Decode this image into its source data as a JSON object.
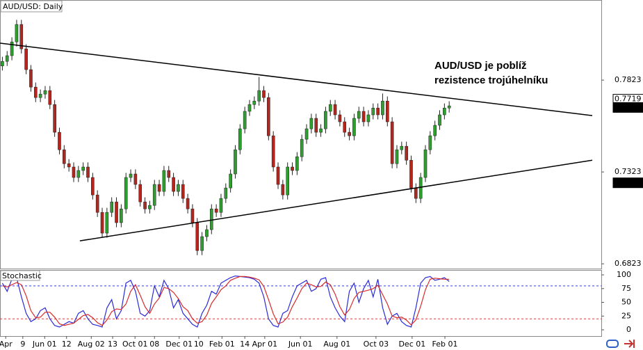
{
  "chart_data": [
    {
      "type": "candlestick",
      "title": "AUD/USD: Daily",
      "annotation": [
        "AUD/USD je poblíž",
        "rezistence trojúhelníku"
      ],
      "up_color": "#2e9e2e",
      "down_color": "#b3261e",
      "xlim": [
        -0.5,
        126
      ],
      "ylim": [
        0.6797,
        0.8259
      ],
      "yticks": [
        0.6823,
        0.7323,
        0.7823
      ],
      "open": [
        0.79,
        0.7925,
        0.7956,
        0.8031,
        0.8126,
        0.7993,
        0.788,
        0.7785,
        0.7728,
        0.7747,
        0.7766,
        0.769,
        0.7539,
        0.7444,
        0.7368,
        0.735,
        0.7293,
        0.7331,
        0.735,
        0.7293,
        0.7198,
        0.7103,
        0.699,
        0.7103,
        0.716,
        0.7047,
        0.7122,
        0.7293,
        0.7312,
        0.7255,
        0.716,
        0.7122,
        0.7141,
        0.7255,
        0.7217,
        0.7331,
        0.7293,
        0.7217,
        0.7255,
        0.7179,
        0.7122,
        0.7047,
        0.6895,
        0.6971,
        0.7009,
        0.7122,
        0.7103,
        0.7179,
        0.7236,
        0.7312,
        0.7444,
        0.7558,
        0.7653,
        0.769,
        0.7709,
        0.7766,
        0.7728,
        0.752,
        0.735,
        0.7255,
        0.7198,
        0.735,
        0.7331,
        0.7406,
        0.7501,
        0.7558,
        0.7615,
        0.7539,
        0.7558,
        0.7653,
        0.769,
        0.7634,
        0.7596,
        0.7539,
        0.752,
        0.7615,
        0.7653,
        0.7596,
        0.7634,
        0.7671,
        0.7634,
        0.7709,
        0.7596,
        0.7368,
        0.7444,
        0.7463,
        0.7387,
        0.7236,
        0.7179,
        0.7293,
        0.7444,
        0.752,
        0.7577,
        0.7634,
        0.7671
      ],
      "high": [
        0.795,
        0.7981,
        0.8056,
        0.8151,
        0.8151,
        0.8018,
        0.7905,
        0.781,
        0.7772,
        0.7791,
        0.7791,
        0.7715,
        0.7564,
        0.7469,
        0.7393,
        0.7375,
        0.7356,
        0.7375,
        0.7375,
        0.7318,
        0.7223,
        0.7128,
        0.7128,
        0.7185,
        0.7185,
        0.7147,
        0.7318,
        0.7337,
        0.7337,
        0.728,
        0.7185,
        0.7166,
        0.728,
        0.728,
        0.7356,
        0.7356,
        0.7318,
        0.728,
        0.728,
        0.7204,
        0.7147,
        0.7072,
        0.6996,
        0.7034,
        0.7147,
        0.7147,
        0.7204,
        0.7261,
        0.7337,
        0.7469,
        0.7583,
        0.7678,
        0.7715,
        0.7734,
        0.784,
        0.7791,
        0.7753,
        0.7545,
        0.7375,
        0.728,
        0.7375,
        0.7375,
        0.7431,
        0.7526,
        0.7583,
        0.764,
        0.764,
        0.7583,
        0.7678,
        0.7715,
        0.7715,
        0.7659,
        0.7621,
        0.7564,
        0.764,
        0.7678,
        0.7678,
        0.7659,
        0.7696,
        0.7696,
        0.775,
        0.7734,
        0.7621,
        0.7469,
        0.7488,
        0.7488,
        0.7412,
        0.7261,
        0.7318,
        0.7469,
        0.7545,
        0.7602,
        0.7659,
        0.7696,
        0.7708
      ],
      "low": [
        0.7875,
        0.79,
        0.7931,
        0.8006,
        0.7968,
        0.7855,
        0.776,
        0.7703,
        0.7703,
        0.7722,
        0.7665,
        0.7514,
        0.7419,
        0.7343,
        0.7325,
        0.7268,
        0.7268,
        0.7306,
        0.7268,
        0.7173,
        0.7078,
        0.6965,
        0.6965,
        0.7078,
        0.7022,
        0.7022,
        0.7097,
        0.7268,
        0.723,
        0.7135,
        0.7097,
        0.7097,
        0.7116,
        0.7192,
        0.7192,
        0.7268,
        0.7192,
        0.7192,
        0.7154,
        0.7097,
        0.7022,
        0.687,
        0.687,
        0.6946,
        0.6984,
        0.7078,
        0.7078,
        0.7154,
        0.7211,
        0.7287,
        0.7419,
        0.7533,
        0.7628,
        0.7665,
        0.7684,
        0.7703,
        0.7495,
        0.7325,
        0.723,
        0.7173,
        0.7173,
        0.7306,
        0.7306,
        0.7381,
        0.7476,
        0.7533,
        0.7514,
        0.7514,
        0.7533,
        0.7628,
        0.7609,
        0.7571,
        0.7514,
        0.7495,
        0.7495,
        0.759,
        0.7571,
        0.7571,
        0.7609,
        0.7609,
        0.7609,
        0.7571,
        0.7343,
        0.7343,
        0.7419,
        0.7362,
        0.7211,
        0.7154,
        0.7154,
        0.7268,
        0.7419,
        0.7495,
        0.7552,
        0.7609,
        0.7646
      ],
      "close": [
        0.7925,
        0.7956,
        0.8031,
        0.8126,
        0.7993,
        0.788,
        0.7785,
        0.7728,
        0.7747,
        0.7766,
        0.769,
        0.7539,
        0.7444,
        0.7368,
        0.735,
        0.7293,
        0.7331,
        0.735,
        0.7293,
        0.7198,
        0.7103,
        0.699,
        0.7103,
        0.716,
        0.7047,
        0.7122,
        0.7293,
        0.7312,
        0.7255,
        0.716,
        0.7122,
        0.7141,
        0.7255,
        0.7217,
        0.7331,
        0.7293,
        0.7217,
        0.7255,
        0.7179,
        0.7122,
        0.7047,
        0.6895,
        0.6971,
        0.7009,
        0.7122,
        0.7103,
        0.7179,
        0.7236,
        0.7312,
        0.7444,
        0.7558,
        0.7653,
        0.769,
        0.7709,
        0.7766,
        0.7728,
        0.752,
        0.735,
        0.7255,
        0.7198,
        0.735,
        0.7331,
        0.7406,
        0.7501,
        0.7558,
        0.7615,
        0.7539,
        0.7558,
        0.7653,
        0.769,
        0.7634,
        0.7596,
        0.7539,
        0.752,
        0.7615,
        0.7653,
        0.7596,
        0.7634,
        0.7671,
        0.7634,
        0.7709,
        0.7596,
        0.7368,
        0.7444,
        0.7463,
        0.7387,
        0.7236,
        0.7179,
        0.7293,
        0.7444,
        0.752,
        0.7577,
        0.7634,
        0.7671,
        0.7683
      ],
      "trendlines": [
        {
          "x": [
            -0.5,
            124.1
          ],
          "y": [
            0.8024,
            0.763
          ]
        },
        {
          "x": [
            16.3,
            124.1
          ],
          "y": [
            0.6948,
            0.7387
          ]
        }
      ],
      "price_labels": [
        {
          "value": 0.7719,
          "style": "outline"
        },
        {
          "value": 0.7674,
          "style": "filled"
        },
        {
          "value": 0.7264,
          "style": "filled"
        }
      ]
    },
    {
      "type": "line",
      "title": "Stochastic",
      "xlim": [
        -0.5,
        126
      ],
      "ylim": [
        -11.4,
        108.9
      ],
      "yticks": [
        0,
        25,
        50,
        75,
        100
      ],
      "levels": [
        {
          "value": 80,
          "color": "#3b3bd0"
        },
        {
          "value": 20,
          "color": "#d03b3b"
        }
      ],
      "xticks": [
        {
          "value": 0.7,
          "label": "Apr"
        },
        {
          "value": 4.3,
          "label": "9"
        },
        {
          "value": 8.9,
          "label": "Jun 01"
        },
        {
          "value": 13.5,
          "label": "12"
        },
        {
          "value": 18.7,
          "label": "Aug 02"
        },
        {
          "value": 23.2,
          "label": "13"
        },
        {
          "value": 27.9,
          "label": "Oct 01"
        },
        {
          "value": 32,
          "label": "08"
        },
        {
          "value": 37.2,
          "label": "Dec 01"
        },
        {
          "value": 41.3,
          "label": "10"
        },
        {
          "value": 46.2,
          "label": "Feb 01"
        },
        {
          "value": 51,
          "label": "14"
        },
        {
          "value": 55.2,
          "label": "Apr 01"
        },
        {
          "value": 62.7,
          "label": "Jun 01"
        },
        {
          "value": 70.4,
          "label": "Aug 01"
        },
        {
          "value": 78.6,
          "label": "Oct 03"
        },
        {
          "value": 86.2,
          "label": "Dec 01"
        },
        {
          "value": 93.1,
          "label": "Feb 01"
        }
      ],
      "series": [
        {
          "color": "#2a2ad8",
          "values": [
            85,
            70,
            92,
            95,
            60,
            30,
            15,
            20,
            35,
            40,
            20,
            8,
            5,
            10,
            15,
            12,
            30,
            35,
            20,
            10,
            8,
            5,
            40,
            55,
            20,
            35,
            85,
            90,
            70,
            30,
            25,
            35,
            80,
            60,
            90,
            75,
            40,
            55,
            30,
            20,
            10,
            5,
            30,
            45,
            70,
            65,
            85,
            90,
            95,
            98,
            97,
            96,
            95,
            92,
            85,
            60,
            20,
            8,
            5,
            30,
            35,
            60,
            80,
            85,
            90,
            70,
            75,
            92,
            95,
            60,
            40,
            25,
            15,
            70,
            85,
            50,
            75,
            90,
            60,
            92,
            40,
            10,
            25,
            30,
            15,
            8,
            5,
            40,
            85,
            95,
            97,
            90,
            92,
            95,
            88
          ]
        },
        {
          "color": "#d82a2a",
          "values": [
            80,
            78,
            82,
            86,
            82,
            62,
            35,
            22,
            23,
            32,
            32,
            23,
            11,
            8,
            10,
            12,
            19,
            26,
            28,
            22,
            13,
            8,
            18,
            33,
            38,
            37,
            47,
            70,
            82,
            63,
            42,
            30,
            47,
            58,
            77,
            75,
            68,
            57,
            42,
            35,
            20,
            12,
            15,
            27,
            48,
            60,
            73,
            80,
            90,
            94,
            97,
            97,
            96,
            94,
            91,
            79,
            55,
            29,
            11,
            14,
            23,
            42,
            58,
            75,
            85,
            82,
            78,
            79,
            87,
            82,
            65,
            42,
            27,
            37,
            57,
            68,
            70,
            72,
            75,
            81,
            64,
            47,
            25,
            22,
            23,
            18,
            9,
            18,
            43,
            73,
            92,
            94,
            93,
            92,
            92
          ]
        }
      ]
    }
  ]
}
